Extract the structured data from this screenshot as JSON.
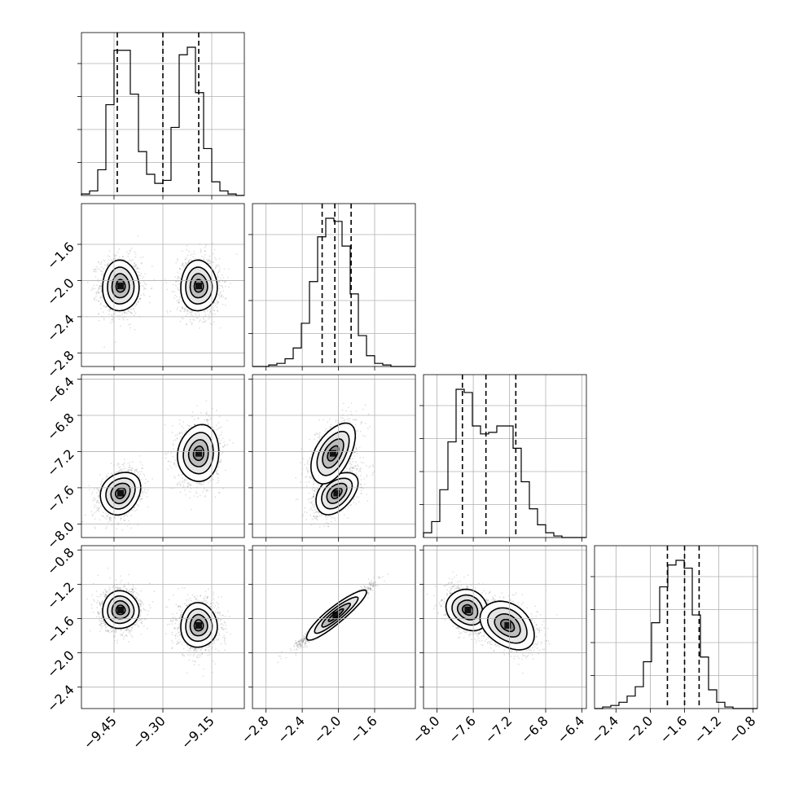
{
  "chart_data": {
    "type": "corner",
    "parameters": [
      {
        "id": "p0",
        "range": [
          -9.55,
          -9.05
        ],
        "ticks": [
          -9.45,
          -9.3,
          -9.15
        ],
        "tick_labels": [
          "−9.45",
          "−9.30",
          "−9.15"
        ],
        "quantiles": [
          -9.44,
          -9.3,
          -9.19
        ],
        "modes": [
          {
            "mean": -9.43,
            "sd": 0.028,
            "w": 0.5
          },
          {
            "mean": -9.19,
            "sd": 0.028,
            "w": 0.5
          }
        ],
        "hist": {
          "edges": [
            -9.55,
            -9.525,
            -9.5,
            -9.475,
            -9.45,
            -9.425,
            -9.4,
            -9.375,
            -9.35,
            -9.325,
            -9.3,
            -9.275,
            -9.25,
            -9.225,
            -9.2,
            -9.175,
            -9.15,
            -9.125,
            -9.1,
            -9.075,
            -9.05
          ],
          "counts": [
            1,
            3,
            17,
            60,
            96,
            96,
            67,
            29,
            14,
            8,
            10,
            45,
            93,
            98,
            68,
            31,
            9,
            3,
            1,
            0
          ]
        }
      },
      {
        "id": "p1",
        "range": [
          -2.95,
          -1.15
        ],
        "ticks": [
          -2.8,
          -2.4,
          -2.0,
          -1.6
        ],
        "tick_labels": [
          "−2.8",
          "−2.4",
          "−2.0",
          "−1.6"
        ],
        "quantiles": [
          -2.18,
          -2.04,
          -1.86
        ],
        "modes": [
          {
            "mean": -2.04,
            "sd": 0.15,
            "w": 1.0
          }
        ],
        "hist": {
          "edges": [
            -2.95,
            -2.86,
            -2.77,
            -2.68,
            -2.59,
            -2.5,
            -2.41,
            -2.32,
            -2.23,
            -2.14,
            -2.05,
            -1.96,
            -1.87,
            -1.78,
            -1.69,
            -1.6,
            -1.51,
            -1.42,
            -1.33,
            -1.24,
            -1.15
          ],
          "counts": [
            0,
            0,
            1,
            2,
            5,
            12,
            28,
            55,
            84,
            96,
            94,
            78,
            47,
            20,
            7,
            2,
            1,
            0,
            0,
            0
          ]
        }
      },
      {
        "id": "p2",
        "range": [
          -8.15,
          -6.35
        ],
        "ticks": [
          -8.0,
          -7.6,
          -7.2,
          -6.8,
          -6.4
        ],
        "tick_labels": [
          "−8.0",
          "−7.6",
          "−7.2",
          "−6.8",
          "−6.4"
        ],
        "quantiles": [
          -7.72,
          -7.46,
          -7.13
        ],
        "modes": [
          {
            "mean": -7.68,
            "sd": 0.12,
            "w": 0.5
          },
          {
            "mean": -7.22,
            "sd": 0.16,
            "w": 0.5
          }
        ],
        "hist": {
          "edges": [
            -8.15,
            -8.06,
            -7.97,
            -7.88,
            -7.79,
            -7.7,
            -7.61,
            -7.52,
            -7.43,
            -7.34,
            -7.25,
            -7.16,
            -7.07,
            -6.98,
            -6.89,
            -6.8,
            -6.71,
            -6.62,
            -6.53,
            -6.44,
            -6.35
          ],
          "counts": [
            3,
            10,
            30,
            60,
            93,
            91,
            70,
            65,
            66,
            70,
            70,
            56,
            35,
            18,
            8,
            3,
            1,
            0,
            0,
            0
          ]
        }
      },
      {
        "id": "p3",
        "range": [
          -2.65,
          -0.75
        ],
        "ticks": [
          -2.4,
          -2.0,
          -1.6,
          -1.2,
          -0.8
        ],
        "tick_labels": [
          "−2.4",
          "−2.0",
          "−1.6",
          "−1.2",
          "−0.8"
        ],
        "quantiles": [
          -1.8,
          -1.6,
          -1.43
        ],
        "modes": [
          {
            "mean": -1.6,
            "sd": 0.14,
            "w": 1.0
          }
        ],
        "hist": {
          "edges": [
            -2.65,
            -2.555,
            -2.46,
            -2.365,
            -2.27,
            -2.175,
            -2.08,
            -1.985,
            -1.89,
            -1.795,
            -1.7,
            -1.605,
            -1.51,
            -1.415,
            -1.32,
            -1.225,
            -1.13,
            -1.035,
            -0.94,
            -0.845,
            -0.75
          ],
          "counts": [
            0,
            1,
            2,
            4,
            8,
            14,
            30,
            55,
            78,
            92,
            95,
            90,
            60,
            33,
            12,
            4,
            1,
            0,
            0,
            0
          ]
        }
      }
    ],
    "pairs": [
      {
        "row": 1,
        "col": 0,
        "clusters": [
          {
            "mx": -9.43,
            "my": -2.06,
            "sx": 0.028,
            "sy": 0.14,
            "rho": 0.0
          },
          {
            "mx": -9.19,
            "my": -2.06,
            "sx": 0.028,
            "sy": 0.14,
            "rho": 0.0
          }
        ]
      },
      {
        "row": 2,
        "col": 0,
        "clusters": [
          {
            "mx": -9.43,
            "my": -7.66,
            "sx": 0.028,
            "sy": 0.11,
            "rho": 0.3
          },
          {
            "mx": -9.19,
            "my": -7.22,
            "sx": 0.028,
            "sy": 0.15,
            "rho": 0.1
          }
        ]
      },
      {
        "row": 2,
        "col": 1,
        "clusters": [
          {
            "mx": -2.02,
            "my": -7.66,
            "sx": 0.11,
            "sy": 0.11,
            "rho": 0.6
          },
          {
            "mx": -2.06,
            "my": -7.22,
            "sx": 0.11,
            "sy": 0.15,
            "rho": 0.5
          }
        ]
      },
      {
        "row": 3,
        "col": 0,
        "clusters": [
          {
            "mx": -9.43,
            "my": -1.5,
            "sx": 0.028,
            "sy": 0.11,
            "rho": 0.0
          },
          {
            "mx": -9.19,
            "my": -1.68,
            "sx": 0.028,
            "sy": 0.13,
            "rho": 0.0
          }
        ]
      },
      {
        "row": 3,
        "col": 1,
        "clusters": [
          {
            "mx": -2.03,
            "my": -1.56,
            "sx": 0.15,
            "sy": 0.13,
            "rho": 0.97
          }
        ]
      },
      {
        "row": 3,
        "col": 2,
        "clusters": [
          {
            "mx": -7.66,
            "my": -1.5,
            "sx": 0.11,
            "sy": 0.11,
            "rho": -0.3
          },
          {
            "mx": -7.22,
            "my": -1.68,
            "sx": 0.14,
            "sy": 0.13,
            "rho": -0.4
          }
        ]
      }
    ],
    "title": "",
    "grid": true,
    "legend": "none"
  }
}
